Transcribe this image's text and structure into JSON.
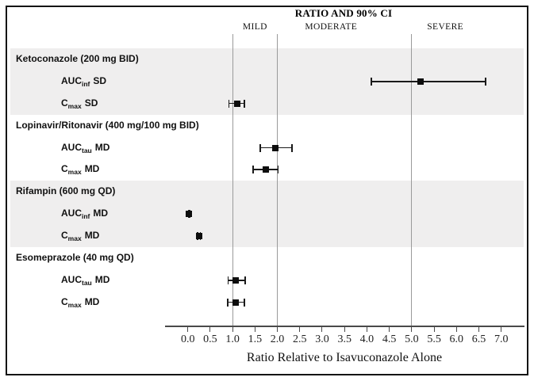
{
  "figure": {
    "border_color": "#141414",
    "band_color": "#efeeee",
    "reference_line_color": "#9a9a9a",
    "marker_color": "#0d0d0d",
    "ci_color": "#1a1a1a"
  },
  "chart_data": {
    "type": "forest",
    "title": "RATIO AND 90% CI",
    "xlabel": "Ratio Relative to Isavuconazole Alone",
    "x_axis": {
      "min": -0.5,
      "max": 7.5,
      "ticks": [
        0.0,
        0.5,
        1.0,
        1.5,
        2.0,
        2.5,
        3.0,
        3.5,
        4.0,
        4.5,
        5.0,
        5.5,
        6.0,
        6.5,
        7.0
      ],
      "tick_decimals": 1
    },
    "reference_lines": [
      1.0,
      2.0,
      5.0
    ],
    "severity_zones": [
      {
        "label": "MILD",
        "center": 1.5
      },
      {
        "label": "MODERATE",
        "center": 3.2
      },
      {
        "label": "SEVERE",
        "center": 5.75
      }
    ],
    "groups": [
      {
        "header": "Ketoconazole (200 mg BID)",
        "shaded": true,
        "rows": [
          {
            "parameter": "AUC",
            "subscript": "inf",
            "dose_type": "SD",
            "estimate": 5.2,
            "lo": 4.1,
            "hi": 6.65
          },
          {
            "parameter": "C",
            "subscript": "max",
            "dose_type": "SD",
            "estimate": 1.1,
            "lo": 0.92,
            "hi": 1.26
          }
        ]
      },
      {
        "header": "Lopinavir/Ritonavir (400 mg/100 mg BID)",
        "shaded": false,
        "rows": [
          {
            "parameter": "AUC",
            "subscript": "tau",
            "dose_type": "MD",
            "estimate": 1.96,
            "lo": 1.62,
            "hi": 2.33
          },
          {
            "parameter": "C",
            "subscript": "max",
            "dose_type": "MD",
            "estimate": 1.75,
            "lo": 1.46,
            "hi": 2.02
          }
        ]
      },
      {
        "header": "Rifampin (600 mg QD)",
        "shaded": true,
        "rows": [
          {
            "parameter": "AUC",
            "subscript": "inf",
            "dose_type": "MD",
            "estimate": 0.03,
            "lo": 0.02,
            "hi": 0.05
          },
          {
            "parameter": "C",
            "subscript": "max",
            "dose_type": "MD",
            "estimate": 0.25,
            "lo": 0.22,
            "hi": 0.28
          }
        ]
      },
      {
        "header": "Esomeprazole (40 mg QD)",
        "shaded": false,
        "rows": [
          {
            "parameter": "AUC",
            "subscript": "tau",
            "dose_type": "MD",
            "estimate": 1.07,
            "lo": 0.9,
            "hi": 1.28
          },
          {
            "parameter": "C",
            "subscript": "max",
            "dose_type": "MD",
            "estimate": 1.06,
            "lo": 0.89,
            "hi": 1.26
          }
        ]
      }
    ]
  }
}
